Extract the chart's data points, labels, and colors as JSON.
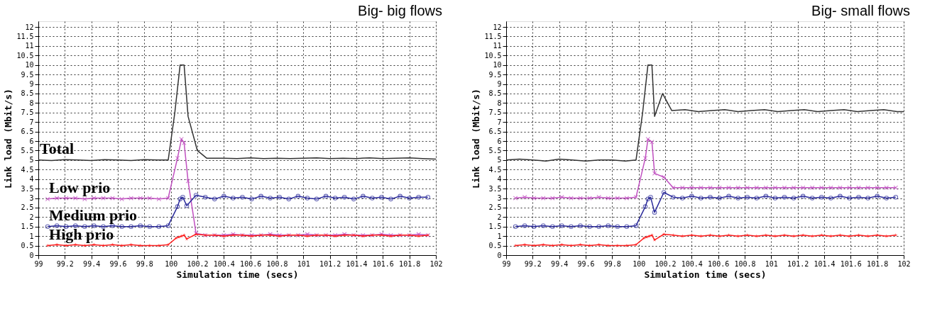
{
  "chart_data": [
    {
      "type": "line",
      "title": "Big- big flows",
      "xlabel": "Simulation time (secs)",
      "ylabel": "Link load (Mbit/s)",
      "xlim": [
        99,
        102
      ],
      "xticks": [
        99,
        99.2,
        99.4,
        99.6,
        99.8,
        100,
        100.2,
        100.4,
        100.6,
        100.8,
        101,
        101.2,
        101.4,
        101.6,
        101.8,
        102
      ],
      "ylim": [
        0,
        12.3
      ],
      "yticks": [
        0,
        0.5,
        1,
        1.5,
        2,
        2.5,
        3,
        3.5,
        4,
        4.5,
        5,
        5.5,
        6,
        6.5,
        7,
        7.5,
        8,
        8.5,
        9,
        9.5,
        10,
        10.5,
        11,
        11.5,
        12
      ],
      "grid": true,
      "series": [
        {
          "name": "Total",
          "color": "#333333",
          "marker": "none",
          "x": [
            99,
            99.1,
            99.2,
            99.3,
            99.4,
            99.5,
            99.6,
            99.7,
            99.8,
            99.9,
            99.98,
            100.03,
            100.07,
            100.1,
            100.13,
            100.2,
            100.27,
            100.4,
            100.5,
            100.6,
            100.7,
            100.8,
            100.9,
            101,
            101.1,
            101.2,
            101.3,
            101.4,
            101.5,
            101.6,
            101.7,
            101.8,
            101.9,
            102
          ],
          "values": [
            5.0,
            4.98,
            5.02,
            5.0,
            4.98,
            5.02,
            5.0,
            4.98,
            5.02,
            5.0,
            5.0,
            7.5,
            10,
            10,
            7.3,
            5.5,
            5.1,
            5.1,
            5.08,
            5.12,
            5.08,
            5.1,
            5.08,
            5.1,
            5.12,
            5.08,
            5.1,
            5.08,
            5.12,
            5.08,
            5.1,
            5.12,
            5.08,
            5.05
          ]
        },
        {
          "name": "Low  prio",
          "color": "#c050c0",
          "marker": "cross",
          "x": [
            99.07,
            99.14,
            99.21,
            99.28,
            99.35,
            99.42,
            99.49,
            99.56,
            99.63,
            99.7,
            99.77,
            99.84,
            99.91,
            99.98,
            100.05,
            100.08,
            100.1,
            100.13,
            100.19,
            100.26,
            100.33,
            100.4,
            100.47,
            100.54,
            100.61,
            100.68,
            100.75,
            100.82,
            100.89,
            100.96,
            101.03,
            101.1,
            101.17,
            101.24,
            101.31,
            101.38,
            101.45,
            101.52,
            101.59,
            101.66,
            101.73,
            101.8,
            101.87,
            101.94
          ],
          "values": [
            2.95,
            3,
            3,
            3,
            2.95,
            3,
            3,
            3,
            2.95,
            3,
            3,
            3,
            2.95,
            3,
            5.1,
            6.1,
            5.9,
            3.9,
            1.15,
            1.05,
            1.05,
            1.05,
            1.1,
            1.05,
            1.05,
            1.05,
            1.1,
            1.05,
            1.05,
            1.05,
            1.1,
            1.05,
            1.05,
            1.05,
            1.1,
            1.05,
            1.05,
            1.05,
            1.1,
            1.05,
            1.05,
            1.05,
            1.1,
            1.05
          ]
        },
        {
          "name": "Medium prio",
          "color": "#2a2a9a",
          "marker": "circle",
          "x": [
            99.07,
            99.14,
            99.21,
            99.28,
            99.35,
            99.42,
            99.49,
            99.56,
            99.63,
            99.7,
            99.77,
            99.84,
            99.91,
            99.98,
            100.05,
            100.07,
            100.09,
            100.12,
            100.19,
            100.26,
            100.33,
            100.4,
            100.47,
            100.54,
            100.61,
            100.68,
            100.75,
            100.82,
            100.89,
            100.96,
            101.03,
            101.1,
            101.17,
            101.24,
            101.31,
            101.38,
            101.45,
            101.52,
            101.59,
            101.66,
            101.73,
            101.8,
            101.87,
            101.94
          ],
          "values": [
            1.5,
            1.55,
            1.5,
            1.55,
            1.5,
            1.55,
            1.5,
            1.55,
            1.5,
            1.5,
            1.55,
            1.5,
            1.5,
            1.55,
            2.55,
            2.95,
            3.05,
            2.6,
            3.15,
            3.05,
            2.95,
            3.1,
            3.0,
            3.05,
            2.95,
            3.1,
            3.0,
            3.05,
            2.95,
            3.1,
            3.0,
            2.95,
            3.1,
            3.0,
            3.05,
            2.95,
            3.1,
            3.0,
            3.05,
            2.95,
            3.1,
            3.0,
            3.05,
            3.05
          ]
        },
        {
          "name": "High prio",
          "color": "#ff2020",
          "marker": "star",
          "x": [
            99.07,
            99.14,
            99.21,
            99.28,
            99.35,
            99.42,
            99.49,
            99.56,
            99.63,
            99.7,
            99.77,
            99.84,
            99.91,
            99.98,
            100.04,
            100.06,
            100.08,
            100.1,
            100.12,
            100.19,
            100.26,
            100.33,
            100.4,
            100.47,
            100.54,
            100.61,
            100.68,
            100.75,
            100.82,
            100.89,
            100.96,
            101.03,
            101.1,
            101.17,
            101.24,
            101.31,
            101.38,
            101.45,
            101.52,
            101.59,
            101.66,
            101.73,
            101.8,
            101.87,
            101.94
          ],
          "values": [
            0.5,
            0.55,
            0.5,
            0.55,
            0.5,
            0.55,
            0.5,
            0.55,
            0.5,
            0.55,
            0.5,
            0.5,
            0.5,
            0.55,
            0.9,
            0.95,
            1.0,
            1.05,
            0.85,
            1.1,
            1.05,
            1.05,
            1.0,
            1.05,
            1.05,
            1.0,
            1.05,
            1.05,
            1.0,
            1.05,
            1.05,
            1.0,
            1.05,
            1.05,
            1.0,
            1.05,
            1.05,
            1.0,
            1.05,
            1.05,
            1.0,
            1.05,
            1.05,
            1.0,
            1.05
          ]
        }
      ]
    },
    {
      "type": "line",
      "title": "Big- small flows",
      "xlabel": "Simulation time (secs)",
      "ylabel": "Link load (Mbit/s)",
      "xlim": [
        99,
        102
      ],
      "xticks": [
        99,
        99.2,
        99.4,
        99.6,
        99.8,
        100,
        100.2,
        100.4,
        100.6,
        100.8,
        101,
        101.2,
        101.4,
        101.6,
        101.8,
        102
      ],
      "ylim": [
        0,
        12.3
      ],
      "yticks": [
        0,
        0.5,
        1,
        1.5,
        2,
        2.5,
        3,
        3.5,
        4,
        4.5,
        5,
        5.5,
        6,
        6.5,
        7,
        7.5,
        8,
        8.5,
        9,
        9.5,
        10,
        10.5,
        11,
        11.5,
        12
      ],
      "grid": true,
      "series": [
        {
          "color": "#333333",
          "marker": "none",
          "x": [
            99,
            99.1,
            99.2,
            99.3,
            99.4,
            99.5,
            99.6,
            99.7,
            99.8,
            99.9,
            99.98,
            100.03,
            100.07,
            100.1,
            100.12,
            100.18,
            100.25,
            100.35,
            100.45,
            100.55,
            100.65,
            100.75,
            100.85,
            100.95,
            101.05,
            101.15,
            101.25,
            101.35,
            101.45,
            101.55,
            101.65,
            101.75,
            101.85,
            101.95,
            102
          ],
          "values": [
            5.0,
            5.05,
            5.0,
            4.95,
            5.05,
            5.0,
            4.95,
            5.0,
            5.0,
            4.95,
            5.0,
            7.5,
            10,
            10,
            7.3,
            8.5,
            7.6,
            7.65,
            7.55,
            7.6,
            7.65,
            7.55,
            7.6,
            7.65,
            7.55,
            7.6,
            7.65,
            7.55,
            7.6,
            7.65,
            7.55,
            7.6,
            7.65,
            7.55,
            7.55
          ]
        },
        {
          "color": "#c050c0",
          "marker": "cross",
          "x": [
            99.07,
            99.14,
            99.21,
            99.28,
            99.35,
            99.42,
            99.49,
            99.56,
            99.63,
            99.7,
            99.77,
            99.84,
            99.91,
            99.98,
            100.05,
            100.07,
            100.1,
            100.12,
            100.19,
            100.26,
            100.33,
            100.4,
            100.47,
            100.54,
            100.61,
            100.68,
            100.75,
            100.82,
            100.89,
            100.96,
            101.03,
            101.1,
            101.17,
            101.24,
            101.31,
            101.38,
            101.45,
            101.52,
            101.59,
            101.66,
            101.73,
            101.8,
            101.87,
            101.94
          ],
          "values": [
            3,
            3.05,
            3,
            3,
            3,
            3.05,
            3,
            3,
            3,
            3.05,
            3,
            3,
            3,
            3.05,
            5.1,
            6.1,
            5.95,
            4.3,
            4.1,
            3.55,
            3.55,
            3.55,
            3.55,
            3.55,
            3.55,
            3.55,
            3.55,
            3.55,
            3.55,
            3.55,
            3.55,
            3.55,
            3.55,
            3.55,
            3.55,
            3.55,
            3.55,
            3.55,
            3.55,
            3.55,
            3.55,
            3.55,
            3.55,
            3.55
          ]
        },
        {
          "color": "#2a2a9a",
          "marker": "circle",
          "x": [
            99.07,
            99.14,
            99.21,
            99.28,
            99.35,
            99.42,
            99.49,
            99.56,
            99.63,
            99.7,
            99.77,
            99.84,
            99.91,
            99.98,
            100.05,
            100.07,
            100.09,
            100.12,
            100.19,
            100.26,
            100.33,
            100.4,
            100.47,
            100.54,
            100.61,
            100.68,
            100.75,
            100.82,
            100.89,
            100.96,
            101.03,
            101.1,
            101.17,
            101.24,
            101.31,
            101.38,
            101.45,
            101.52,
            101.59,
            101.66,
            101.73,
            101.8,
            101.87,
            101.94
          ],
          "values": [
            1.5,
            1.55,
            1.5,
            1.55,
            1.5,
            1.55,
            1.5,
            1.55,
            1.5,
            1.5,
            1.55,
            1.5,
            1.5,
            1.55,
            2.55,
            2.95,
            3.05,
            2.25,
            3.3,
            3.05,
            3.0,
            3.1,
            3.0,
            3.05,
            3.0,
            3.1,
            3.0,
            3.05,
            3.0,
            3.1,
            3.0,
            3.05,
            3.0,
            3.1,
            3.0,
            3.05,
            3.0,
            3.1,
            3.0,
            3.05,
            3.0,
            3.1,
            3.0,
            3.05
          ]
        },
        {
          "color": "#ff2020",
          "marker": "star",
          "x": [
            99.07,
            99.14,
            99.21,
            99.28,
            99.35,
            99.42,
            99.49,
            99.56,
            99.63,
            99.7,
            99.77,
            99.84,
            99.91,
            99.98,
            100.04,
            100.06,
            100.08,
            100.1,
            100.12,
            100.19,
            100.26,
            100.33,
            100.4,
            100.47,
            100.54,
            100.61,
            100.68,
            100.75,
            100.82,
            100.89,
            100.96,
            101.03,
            101.1,
            101.17,
            101.24,
            101.31,
            101.38,
            101.45,
            101.52,
            101.59,
            101.66,
            101.73,
            101.8,
            101.87,
            101.94
          ],
          "values": [
            0.5,
            0.55,
            0.5,
            0.55,
            0.5,
            0.55,
            0.5,
            0.55,
            0.5,
            0.55,
            0.5,
            0.5,
            0.5,
            0.55,
            0.9,
            0.95,
            1.0,
            1.05,
            0.8,
            1.1,
            1.05,
            1.0,
            1.05,
            1.0,
            1.05,
            1.0,
            1.05,
            1.0,
            1.05,
            1.0,
            1.05,
            1.0,
            1.05,
            1.0,
            1.05,
            1.0,
            1.05,
            1.0,
            1.05,
            1.0,
            1.05,
            1.0,
            1.05,
            1.0,
            1.05
          ]
        }
      ]
    }
  ]
}
